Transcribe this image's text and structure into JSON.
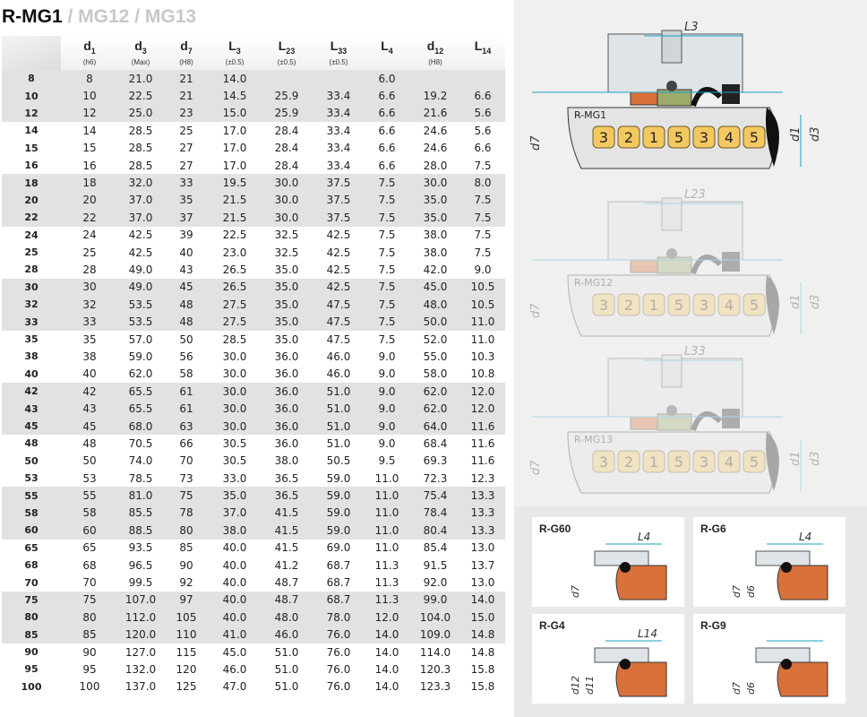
{
  "title": {
    "main": "R-MG1",
    "sub": " / MG12 / MG13"
  },
  "columns": [
    {
      "sym": "d",
      "sub": "1",
      "unit": "(h6)"
    },
    {
      "sym": "d",
      "sub": "3",
      "unit": "(Max)"
    },
    {
      "sym": "d",
      "sub": "7",
      "unit": "(H8)"
    },
    {
      "sym": "L",
      "sub": "3",
      "unit": "(±0.5)"
    },
    {
      "sym": "L",
      "sub": "23",
      "unit": "(±0.5)"
    },
    {
      "sym": "L",
      "sub": "33",
      "unit": "(±0.5)"
    },
    {
      "sym": "L",
      "sub": "4",
      "unit": ""
    },
    {
      "sym": "d",
      "sub": "12",
      "unit": "(H8)"
    },
    {
      "sym": "L",
      "sub": "14",
      "unit": ""
    }
  ],
  "rows": [
    [
      "8",
      "8",
      "21.0",
      "21",
      "14.0",
      "",
      "",
      "6.0",
      "",
      ""
    ],
    [
      "10",
      "10",
      "22.5",
      "21",
      "14.5",
      "25.9",
      "33.4",
      "6.6",
      "19.2",
      "6.6"
    ],
    [
      "12",
      "12",
      "25.0",
      "23",
      "15.0",
      "25.9",
      "33.4",
      "6.6",
      "21.6",
      "5.6"
    ],
    [
      "14",
      "14",
      "28.5",
      "25",
      "17.0",
      "28.4",
      "33.4",
      "6.6",
      "24.6",
      "5.6"
    ],
    [
      "15",
      "15",
      "28.5",
      "27",
      "17.0",
      "28.4",
      "33.4",
      "6.6",
      "24.6",
      "6.6"
    ],
    [
      "16",
      "16",
      "28.5",
      "27",
      "17.0",
      "28.4",
      "33.4",
      "6.6",
      "28.0",
      "7.5"
    ],
    [
      "18",
      "18",
      "32.0",
      "33",
      "19.5",
      "30.0",
      "37.5",
      "7.5",
      "30.0",
      "8.0"
    ],
    [
      "20",
      "20",
      "37.0",
      "35",
      "21.5",
      "30.0",
      "37.5",
      "7.5",
      "35.0",
      "7.5"
    ],
    [
      "22",
      "22",
      "37.0",
      "37",
      "21.5",
      "30.0",
      "37.5",
      "7.5",
      "35.0",
      "7.5"
    ],
    [
      "24",
      "24",
      "42.5",
      "39",
      "22.5",
      "32.5",
      "42.5",
      "7.5",
      "38.0",
      "7.5"
    ],
    [
      "25",
      "25",
      "42.5",
      "40",
      "23.0",
      "32.5",
      "42.5",
      "7.5",
      "38.0",
      "7.5"
    ],
    [
      "28",
      "28",
      "49.0",
      "43",
      "26.5",
      "35.0",
      "42.5",
      "7.5",
      "42.0",
      "9.0"
    ],
    [
      "30",
      "30",
      "49.0",
      "45",
      "26.5",
      "35.0",
      "42.5",
      "7.5",
      "45.0",
      "10.5"
    ],
    [
      "32",
      "32",
      "53.5",
      "48",
      "27.5",
      "35.0",
      "47.5",
      "7.5",
      "48.0",
      "10.5"
    ],
    [
      "33",
      "33",
      "53.5",
      "48",
      "27.5",
      "35.0",
      "47.5",
      "7.5",
      "50.0",
      "11.0"
    ],
    [
      "35",
      "35",
      "57.0",
      "50",
      "28.5",
      "35.0",
      "47.5",
      "7.5",
      "52.0",
      "11.0"
    ],
    [
      "38",
      "38",
      "59.0",
      "56",
      "30.0",
      "36.0",
      "46.0",
      "9.0",
      "55.0",
      "10.3"
    ],
    [
      "40",
      "40",
      "62.0",
      "58",
      "30.0",
      "36.0",
      "46.0",
      "9.0",
      "58.0",
      "10.8"
    ],
    [
      "42",
      "42",
      "65.5",
      "61",
      "30.0",
      "36.0",
      "51.0",
      "9.0",
      "62.0",
      "12.0"
    ],
    [
      "43",
      "43",
      "65.5",
      "61",
      "30.0",
      "36.0",
      "51.0",
      "9.0",
      "62.0",
      "12.0"
    ],
    [
      "45",
      "45",
      "68.0",
      "63",
      "30.0",
      "36.0",
      "51.0",
      "9.0",
      "64.0",
      "11.6"
    ],
    [
      "48",
      "48",
      "70.5",
      "66",
      "30.5",
      "36.0",
      "51.0",
      "9.0",
      "68.4",
      "11.6"
    ],
    [
      "50",
      "50",
      "74.0",
      "70",
      "30.5",
      "38.0",
      "50.5",
      "9.5",
      "69.3",
      "11.6"
    ],
    [
      "53",
      "53",
      "78.5",
      "73",
      "33.0",
      "36.5",
      "59.0",
      "11.0",
      "72.3",
      "12.3"
    ],
    [
      "55",
      "55",
      "81.0",
      "75",
      "35.0",
      "36.5",
      "59.0",
      "11.0",
      "75.4",
      "13.3"
    ],
    [
      "58",
      "58",
      "85.5",
      "78",
      "37.0",
      "41.5",
      "59.0",
      "11.0",
      "78.4",
      "13.3"
    ],
    [
      "60",
      "60",
      "88.5",
      "80",
      "38.0",
      "41.5",
      "59.0",
      "11.0",
      "80.4",
      "13.3"
    ],
    [
      "65",
      "65",
      "93.5",
      "85",
      "40.0",
      "41.5",
      "69.0",
      "11.0",
      "85.4",
      "13.0"
    ],
    [
      "68",
      "68",
      "96.5",
      "90",
      "40.0",
      "41.2",
      "68.7",
      "11.3",
      "91.5",
      "13.7"
    ],
    [
      "70",
      "70",
      "99.5",
      "92",
      "40.0",
      "48.7",
      "68.7",
      "11.3",
      "92.0",
      "13.0"
    ],
    [
      "75",
      "75",
      "107.0",
      "97",
      "40.0",
      "48.7",
      "68.7",
      "11.3",
      "99.0",
      "14.0"
    ],
    [
      "80",
      "80",
      "112.0",
      "105",
      "40.0",
      "48.0",
      "78.0",
      "12.0",
      "104.0",
      "15.0"
    ],
    [
      "85",
      "85",
      "120.0",
      "110",
      "41.0",
      "46.0",
      "76.0",
      "14.0",
      "109.0",
      "14.8"
    ],
    [
      "90",
      "90",
      "127.0",
      "115",
      "45.0",
      "51.0",
      "76.0",
      "14.0",
      "114.0",
      "14.8"
    ],
    [
      "95",
      "95",
      "132.0",
      "120",
      "46.0",
      "51.0",
      "76.0",
      "14.0",
      "120.3",
      "15.8"
    ],
    [
      "100",
      "100",
      "137.0",
      "125",
      "47.0",
      "51.0",
      "76.0",
      "14.0",
      "123.3",
      "15.8"
    ]
  ],
  "group_shading": [
    1,
    0,
    1,
    0,
    1,
    0,
    1,
    0,
    1,
    0,
    1,
    0
  ],
  "diagrams": [
    {
      "label": "R-MG1",
      "dim": "L3",
      "parts": [
        "3",
        "2",
        "1",
        "5",
        "3",
        "4",
        "5"
      ],
      "axis": [
        "d7",
        "d1",
        "d3"
      ]
    },
    {
      "label": "R-MG12",
      "dim": "L23",
      "parts": [
        "3",
        "2",
        "1",
        "5",
        "3",
        "4",
        "5"
      ],
      "axis": [
        "d7",
        "d1",
        "d3"
      ]
    },
    {
      "label": "R-MG13",
      "dim": "L33",
      "parts": [
        "3",
        "2",
        "1",
        "5",
        "3",
        "4",
        "5"
      ],
      "axis": [
        "d7",
        "d1",
        "d3"
      ]
    }
  ],
  "seats": [
    {
      "title": "R-G60",
      "dim": "L4",
      "axis": [
        "d7"
      ]
    },
    {
      "title": "R-G6",
      "dim": "L4",
      "axis": [
        "d7",
        "d6"
      ]
    },
    {
      "title": "R-G4",
      "dim": "L14",
      "axis": [
        "d12",
        "d11"
      ]
    },
    {
      "title": "R-G9",
      "dim": "",
      "axis": [
        "d7",
        "d6"
      ]
    }
  ],
  "colors": {
    "row_shade": "#e2e2e2",
    "seat_orange": "#d9713a",
    "part_yellow": "#f4c860",
    "shaft": "#e4e4e4",
    "dim_line": "#1aa0c8"
  }
}
